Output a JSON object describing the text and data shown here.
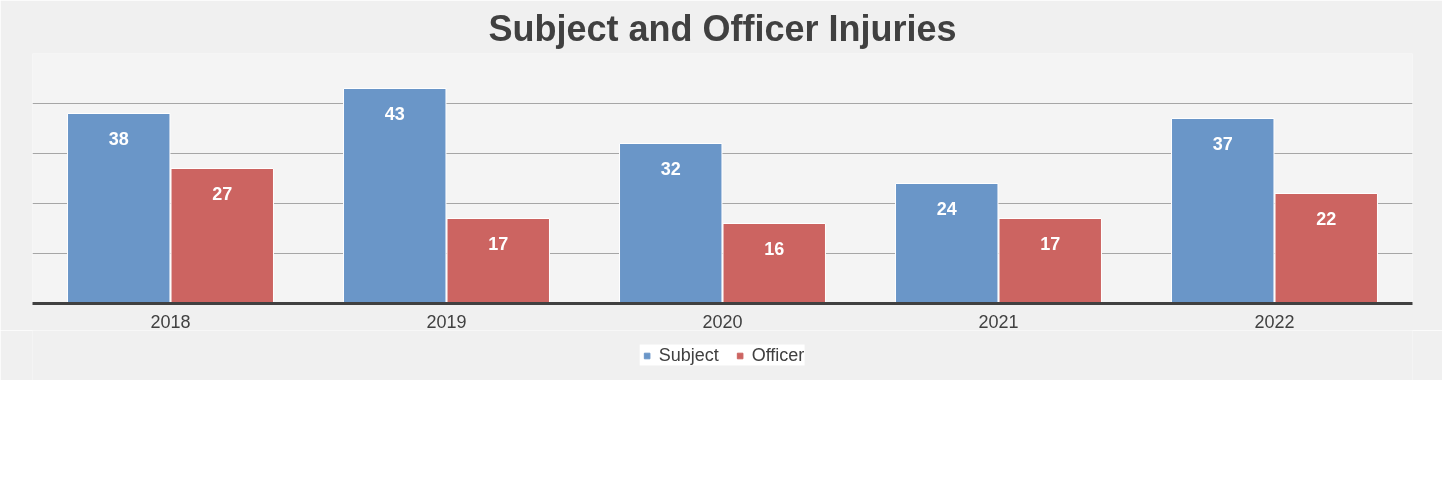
{
  "chart_data": {
    "type": "bar",
    "title": "Subject and Officer Injuries",
    "categories": [
      "2018",
      "2019",
      "2020",
      "2021",
      "2022"
    ],
    "series": [
      {
        "name": "Subject",
        "color": "#6a96c8",
        "values": [
          38,
          43,
          32,
          24,
          37
        ]
      },
      {
        "name": "Officer",
        "color": "#cc6461",
        "values": [
          27,
          17,
          16,
          17,
          22
        ]
      }
    ],
    "ylim": [
      0,
      50
    ],
    "yticks": [
      {
        "value": 0,
        "label": null
      },
      {
        "value": 10,
        "label": null
      },
      {
        "value": 20,
        "label": null
      },
      {
        "value": 30,
        "label": null
      },
      {
        "value": 40,
        "label": null
      },
      {
        "value": 50,
        "label": null
      }
    ],
    "tick_labels": "x",
    "grid": "y",
    "data_labels": true,
    "legend": "bottom"
  }
}
